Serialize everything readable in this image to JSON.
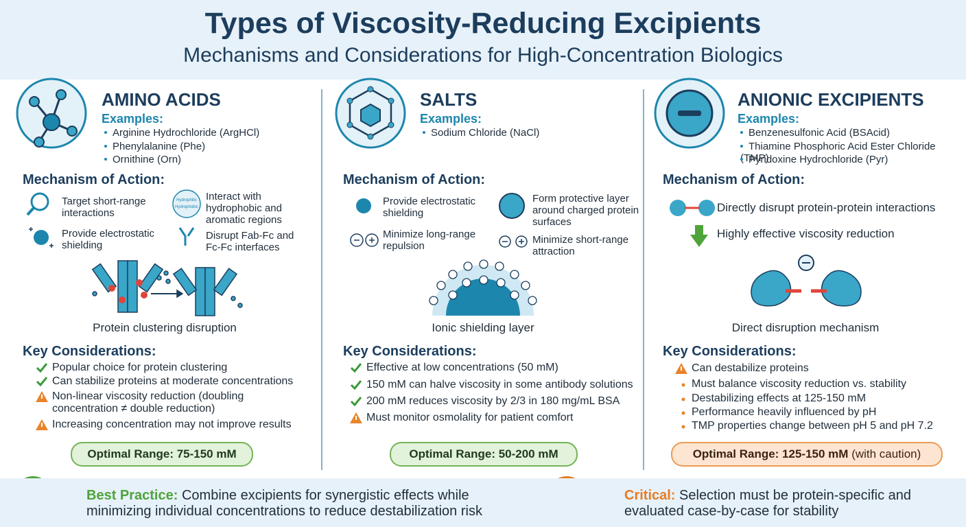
{
  "header": {
    "title": "Types of Viscosity-Reducing Excipients",
    "subtitle": "Mechanisms and Considerations for High-Concentration Biologics"
  },
  "columns": [
    {
      "title": "AMINO ACIDS",
      "examples_label": "Examples:",
      "examples": [
        "Arginine Hydrochloride (ArgHCl)",
        "Phenylalanine (Phe)",
        "Ornithine (Orn)"
      ],
      "mechanism_label": "Mechanism of Action:",
      "mechanisms": [
        "Target short-range interactions",
        "Provide electrostatic shielding",
        "Interact with hydrophobic and aromatic regions",
        "Disrupt Fab-Fc and Fc-Fc interfaces"
      ],
      "icon_labels": [
        "Hydrophilic",
        "Hydrophobic"
      ],
      "illustration_caption": "Protein clustering disruption",
      "considerations_label": "Key Considerations:",
      "considerations": [
        {
          "marker": "check",
          "text": "Popular choice for protein clustering"
        },
        {
          "marker": "check",
          "text": "Can stabilize proteins at moderate concentrations"
        },
        {
          "marker": "warning",
          "text": "Non-linear viscosity reduction (doubling concentration ≠ double reduction)"
        },
        {
          "marker": "warning",
          "text": "Increasing concentration may not improve results"
        }
      ],
      "optimal_range": "Optimal Range: 75-150 mM",
      "range_style": "green"
    },
    {
      "title": "SALTS",
      "examples_label": "Examples:",
      "examples": [
        "Sodium Chloride (NaCl)"
      ],
      "mechanism_label": "Mechanism of Action:",
      "mechanisms": [
        "Provide electrostatic shielding",
        "Minimize long-range repulsion",
        "Form protective layer around charged protein surfaces",
        "Minimize short-range attraction"
      ],
      "illustration_caption": "Ionic shielding layer",
      "considerations_label": "Key Considerations:",
      "considerations": [
        {
          "marker": "check",
          "text": "Effective at low concentrations (50 mM)"
        },
        {
          "marker": "check",
          "text": "150 mM can halve viscosity in some antibody solutions"
        },
        {
          "marker": "check",
          "text": "200 mM reduces viscosity by 2/3 in 180 mg/mL BSA"
        },
        {
          "marker": "warning",
          "text": "Must monitor osmolality for patient comfort"
        }
      ],
      "optimal_range": "Optimal Range: 50-200 mM",
      "range_style": "green"
    },
    {
      "title": "ANIONIC EXCIPIENTS",
      "examples_label": "Examples:",
      "examples": [
        "Benzenesulfonic Acid (BSAcid)",
        "Thiamine Phosphoric Acid Ester Chloride (TMP)",
        "Pyridoxine Hydrochloride (Pyr)"
      ],
      "mechanism_label": "Mechanism of Action:",
      "mechanisms": [
        "Directly disrupt protein-protein interactions",
        "Highly effective viscosity reduction"
      ],
      "illustration_caption": "Direct disruption mechanism",
      "considerations_label": "Key Considerations:",
      "considerations": [
        {
          "marker": "warning",
          "text": "Can destabilize proteins"
        },
        {
          "marker": "bullet",
          "text": "Must balance viscosity reduction vs. stability"
        },
        {
          "marker": "bullet",
          "text": "Destabilizing effects at 125-150 mM"
        },
        {
          "marker": "bullet",
          "text": "Performance heavily influenced by pH"
        },
        {
          "marker": "bullet",
          "text": "TMP properties change between pH 5 and pH 7.2"
        }
      ],
      "optimal_range": "Optimal Range: 125-150 mM",
      "range_note": "(with caution)",
      "range_style": "orange"
    }
  ],
  "footer": [
    {
      "label": "Best Practice:",
      "text": "Combine excipients for synergistic effects while minimizing individual concentrations to reduce destabilization risk"
    },
    {
      "label": "Critical:",
      "text": "Selection must be protein-specific and evaluated case-by-case for stability"
    }
  ]
}
